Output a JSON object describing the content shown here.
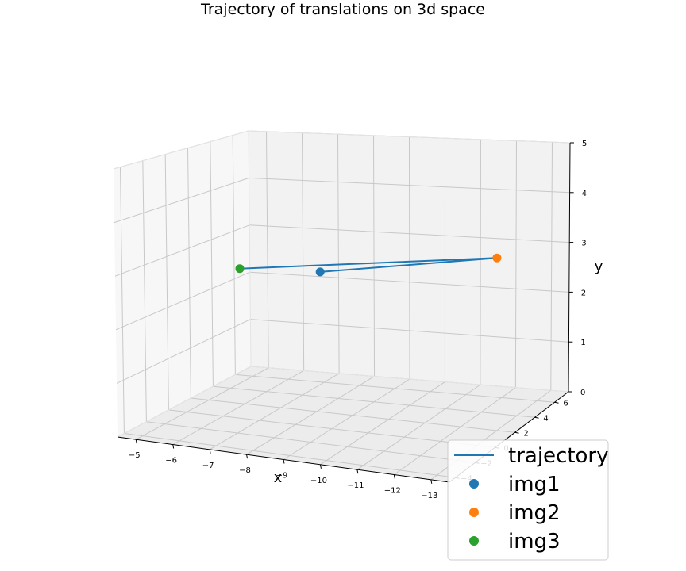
{
  "chart_data": {
    "type": "line",
    "title": "Trajectory of translations on 3d space",
    "xlabel": "x",
    "ylabel": "y",
    "zlabel": "",
    "x_ticks": [
      "−5",
      "−6",
      "−7",
      "−8",
      "−9",
      "−10",
      "−11",
      "−12",
      "−13"
    ],
    "z_ticks": [
      "−4",
      "−2",
      "0",
      "2",
      "4",
      "6"
    ],
    "y_ticks": [
      "0",
      "1",
      "2",
      "3",
      "4",
      "5"
    ],
    "xlim": [
      -5,
      -13
    ],
    "ylim": [
      0,
      5
    ],
    "zlim": [
      -4,
      6
    ],
    "grid": true,
    "legend_position": "bottom-right",
    "series": [
      {
        "name": "trajectory",
        "type": "line",
        "color": "#1f77b4",
        "points": [
          {
            "x": -7.6,
            "y": 3.0,
            "z": 3.0
          },
          {
            "x": -12.8,
            "y": 2.3,
            "z": 1.6
          },
          {
            "x": -6.0,
            "y": 2.8,
            "z": -0.6
          }
        ]
      },
      {
        "name": "img1",
        "type": "scatter",
        "color": "#1f77b4",
        "points": [
          {
            "x": -7.6,
            "y": 3.0,
            "z": 3.0
          }
        ]
      },
      {
        "name": "img2",
        "type": "scatter",
        "color": "#ff7f0e",
        "points": [
          {
            "x": -12.8,
            "y": 2.3,
            "z": 1.6
          }
        ]
      },
      {
        "name": "img3",
        "type": "scatter",
        "color": "#2ca02c",
        "points": [
          {
            "x": -6.0,
            "y": 2.8,
            "z": -0.6
          }
        ]
      }
    ],
    "legend": [
      {
        "label": "trajectory",
        "marker": "line",
        "color": "#1f77b4"
      },
      {
        "label": "img1",
        "marker": "dot",
        "color": "#1f77b4"
      },
      {
        "label": "img2",
        "marker": "dot",
        "color": "#ff7f0e"
      },
      {
        "label": "img3",
        "marker": "dot",
        "color": "#2ca02c"
      }
    ]
  }
}
